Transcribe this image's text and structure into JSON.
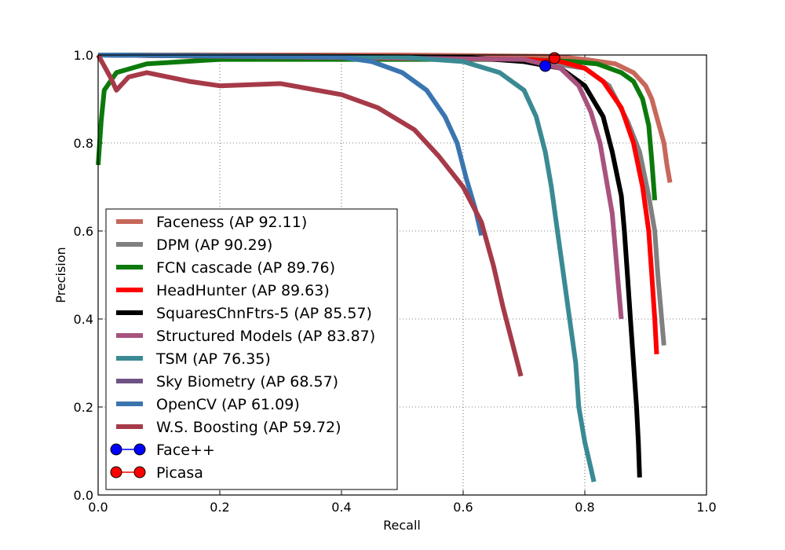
{
  "chart_data": {
    "type": "line",
    "title": "",
    "xlabel": "Recall",
    "ylabel": "Precision",
    "xlim": [
      0.0,
      1.0
    ],
    "ylim": [
      0.0,
      1.0
    ],
    "xticks": [
      "0.0",
      "0.2",
      "0.4",
      "0.6",
      "0.8",
      "1.0"
    ],
    "yticks": [
      "0.0",
      "0.2",
      "0.4",
      "0.6",
      "0.8",
      "1.0"
    ],
    "grid": true,
    "legend_position": "lower-left",
    "series": [
      {
        "name": "Faceness (AP 92.11)",
        "color": "#c8685a",
        "points": [
          [
            0.0,
            1.0
          ],
          [
            0.5,
            1.0
          ],
          [
            0.75,
            0.997
          ],
          [
            0.8,
            0.99
          ],
          [
            0.85,
            0.98
          ],
          [
            0.88,
            0.96
          ],
          [
            0.9,
            0.93
          ],
          [
            0.91,
            0.9
          ],
          [
            0.92,
            0.85
          ],
          [
            0.93,
            0.8
          ],
          [
            0.935,
            0.75
          ],
          [
            0.94,
            0.71
          ]
        ]
      },
      {
        "name": "DPM (AP 90.29)",
        "color": "#808080",
        "points": [
          [
            0.0,
            1.0
          ],
          [
            0.7,
            0.99
          ],
          [
            0.8,
            0.97
          ],
          [
            0.84,
            0.93
          ],
          [
            0.87,
            0.85
          ],
          [
            0.89,
            0.78
          ],
          [
            0.905,
            0.68
          ],
          [
            0.915,
            0.6
          ],
          [
            0.92,
            0.5
          ],
          [
            0.925,
            0.42
          ],
          [
            0.93,
            0.34
          ]
        ]
      },
      {
        "name": "FCN cascade (AP 89.76)",
        "color": "#0b7a0b",
        "points": [
          [
            0.0,
            0.75
          ],
          [
            0.005,
            0.85
          ],
          [
            0.01,
            0.92
          ],
          [
            0.03,
            0.96
          ],
          [
            0.08,
            0.98
          ],
          [
            0.2,
            0.99
          ],
          [
            0.5,
            0.99
          ],
          [
            0.7,
            0.99
          ],
          [
            0.78,
            0.985
          ],
          [
            0.82,
            0.98
          ],
          [
            0.86,
            0.96
          ],
          [
            0.88,
            0.94
          ],
          [
            0.895,
            0.9
          ],
          [
            0.905,
            0.84
          ],
          [
            0.91,
            0.76
          ],
          [
            0.915,
            0.67
          ]
        ]
      },
      {
        "name": "HeadHunter (AP 89.63)",
        "color": "#ff0000",
        "points": [
          [
            0.0,
            1.0
          ],
          [
            0.7,
            0.99
          ],
          [
            0.76,
            0.985
          ],
          [
            0.8,
            0.97
          ],
          [
            0.83,
            0.94
          ],
          [
            0.86,
            0.88
          ],
          [
            0.88,
            0.8
          ],
          [
            0.895,
            0.7
          ],
          [
            0.905,
            0.6
          ],
          [
            0.91,
            0.5
          ],
          [
            0.915,
            0.4
          ],
          [
            0.918,
            0.32
          ]
        ]
      },
      {
        "name": "SquaresChnFtrs-5 (AP 85.57)",
        "color": "#000000",
        "points": [
          [
            0.0,
            1.0
          ],
          [
            0.6,
            0.995
          ],
          [
            0.7,
            0.985
          ],
          [
            0.76,
            0.97
          ],
          [
            0.8,
            0.93
          ],
          [
            0.83,
            0.86
          ],
          [
            0.845,
            0.78
          ],
          [
            0.86,
            0.68
          ],
          [
            0.865,
            0.6
          ],
          [
            0.87,
            0.5
          ],
          [
            0.875,
            0.4
          ],
          [
            0.88,
            0.3
          ],
          [
            0.885,
            0.2
          ],
          [
            0.888,
            0.12
          ],
          [
            0.89,
            0.04
          ]
        ]
      },
      {
        "name": "Structured Models  (AP 83.87)",
        "color": "#a8527e",
        "points": [
          [
            0.0,
            1.0
          ],
          [
            0.7,
            0.99
          ],
          [
            0.76,
            0.97
          ],
          [
            0.79,
            0.93
          ],
          [
            0.81,
            0.87
          ],
          [
            0.825,
            0.8
          ],
          [
            0.835,
            0.72
          ],
          [
            0.845,
            0.64
          ],
          [
            0.85,
            0.56
          ],
          [
            0.855,
            0.48
          ],
          [
            0.86,
            0.4
          ]
        ]
      },
      {
        "name": "TSM  (AP 76.35)",
        "color": "#3a8a93",
        "points": [
          [
            0.0,
            1.0
          ],
          [
            0.5,
            0.995
          ],
          [
            0.6,
            0.985
          ],
          [
            0.66,
            0.96
          ],
          [
            0.7,
            0.92
          ],
          [
            0.72,
            0.86
          ],
          [
            0.735,
            0.78
          ],
          [
            0.745,
            0.7
          ],
          [
            0.755,
            0.6
          ],
          [
            0.765,
            0.5
          ],
          [
            0.775,
            0.4
          ],
          [
            0.785,
            0.3
          ],
          [
            0.79,
            0.2
          ],
          [
            0.8,
            0.12
          ],
          [
            0.81,
            0.06
          ],
          [
            0.815,
            0.03
          ]
        ]
      },
      {
        "name": "Sky Biometry  (AP 68.57)",
        "color": "#6e5285",
        "points": []
      },
      {
        "name": "OpenCV (AP 61.09)",
        "color": "#3a75b0",
        "points": [
          [
            0.0,
            1.0
          ],
          [
            0.4,
            0.995
          ],
          [
            0.45,
            0.985
          ],
          [
            0.5,
            0.96
          ],
          [
            0.54,
            0.92
          ],
          [
            0.57,
            0.86
          ],
          [
            0.59,
            0.8
          ],
          [
            0.605,
            0.72
          ],
          [
            0.62,
            0.65
          ],
          [
            0.63,
            0.59
          ]
        ]
      },
      {
        "name": "W.S. Boosting  (AP 59.72)",
        "color": "#a63a48",
        "points": [
          [
            0.0,
            1.0
          ],
          [
            0.02,
            0.95
          ],
          [
            0.03,
            0.92
          ],
          [
            0.05,
            0.95
          ],
          [
            0.08,
            0.96
          ],
          [
            0.15,
            0.94
          ],
          [
            0.2,
            0.93
          ],
          [
            0.3,
            0.935
          ],
          [
            0.4,
            0.91
          ],
          [
            0.46,
            0.88
          ],
          [
            0.52,
            0.83
          ],
          [
            0.56,
            0.77
          ],
          [
            0.6,
            0.7
          ],
          [
            0.63,
            0.62
          ],
          [
            0.65,
            0.52
          ],
          [
            0.665,
            0.43
          ],
          [
            0.68,
            0.35
          ],
          [
            0.695,
            0.27
          ]
        ]
      }
    ],
    "markers": [
      {
        "name": "Face++",
        "color": "#0000ff",
        "x": 0.735,
        "y": 0.975
      },
      {
        "name": "Picasa",
        "color": "#ff0000",
        "x": 0.75,
        "y": 0.993
      }
    ]
  }
}
